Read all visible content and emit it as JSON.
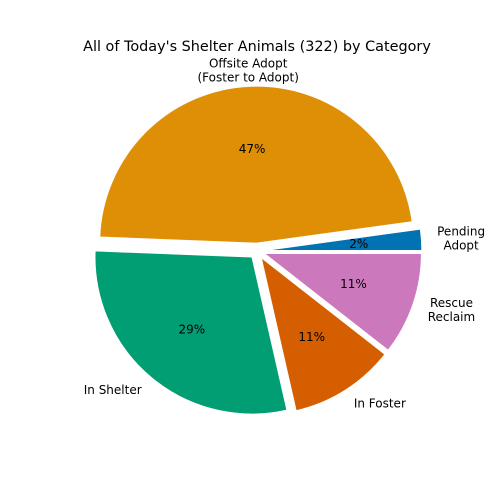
{
  "chart_data": {
    "type": "pie",
    "title": "All of Today's Shelter Animals (322) by Category",
    "slices": [
      {
        "label": [
          "Pending",
          "Adopt"
        ],
        "value": 7,
        "pct_label": "2%",
        "color": "#0173b2"
      },
      {
        "label": [
          "Offsite Adopt",
          "(Foster to Adopt)"
        ],
        "value": 152,
        "pct_label": "47%",
        "color": "#de8f05"
      },
      {
        "label": [
          "In Shelter"
        ],
        "value": 94,
        "pct_label": "29%",
        "color": "#029e73"
      },
      {
        "label": [
          "In Foster"
        ],
        "value": 35,
        "pct_label": "11%",
        "color": "#d55e00"
      },
      {
        "label": [
          "Rescue",
          "Reclaim"
        ],
        "value": 34,
        "pct_label": "11%",
        "color": "#cc78bc"
      }
    ],
    "start_angle_deg": 0,
    "direction": "counterclockwise",
    "exploded": true,
    "legend": "none"
  }
}
